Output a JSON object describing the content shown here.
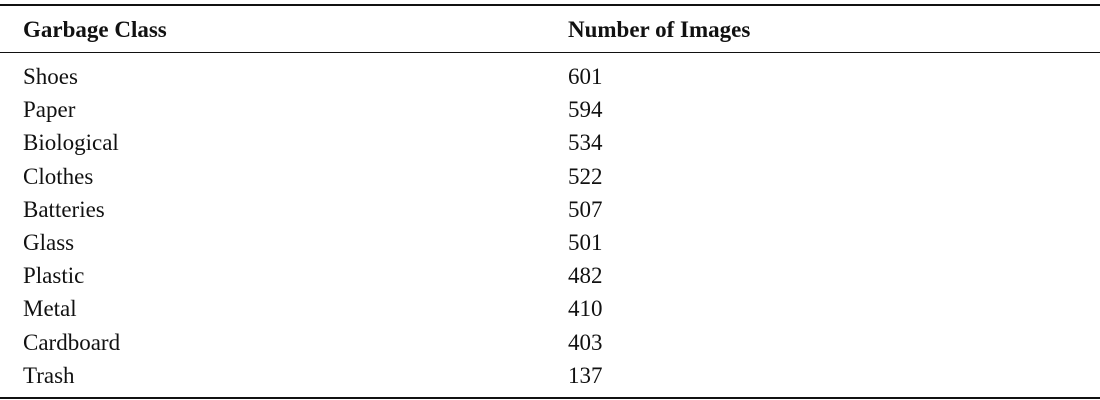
{
  "table": {
    "headers": [
      "Garbage Class",
      "Number of Images"
    ],
    "rows": [
      [
        "Shoes",
        "601"
      ],
      [
        "Paper",
        "594"
      ],
      [
        "Biological",
        "534"
      ],
      [
        "Clothes",
        "522"
      ],
      [
        "Batteries",
        "507"
      ],
      [
        "Glass",
        "501"
      ],
      [
        "Plastic",
        "482"
      ],
      [
        "Metal",
        "410"
      ],
      [
        "Cardboard",
        "403"
      ],
      [
        "Trash",
        "137"
      ]
    ]
  }
}
